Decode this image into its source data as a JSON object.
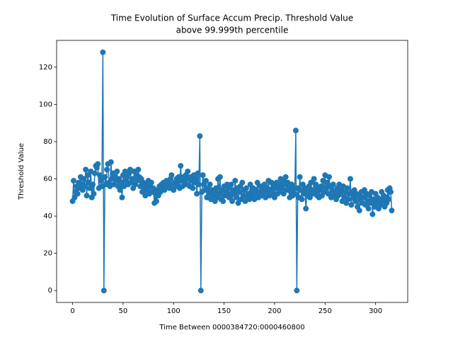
{
  "chart_data": {
    "type": "line",
    "title": [
      "Time Evolution of Surface Accum Precip. Threshold Value",
      "above 99.999th percentile"
    ],
    "xlabel": "Time Between 0000384720:0000460800",
    "ylabel": "Threshold Value",
    "color": "#1f77b4",
    "marker": "o",
    "grid": false,
    "xlim": [
      -15.8,
      331.8
    ],
    "ylim": [
      -6.4,
      134.4
    ],
    "xticks": [
      0,
      50,
      100,
      150,
      200,
      250,
      300
    ],
    "yticks": [
      0,
      20,
      40,
      60,
      80,
      100,
      120
    ],
    "x": [
      0,
      1,
      2,
      3,
      4,
      5,
      6,
      7,
      8,
      9,
      10,
      11,
      12,
      13,
      14,
      15,
      16,
      17,
      18,
      19,
      20,
      21,
      22,
      23,
      24,
      25,
      26,
      27,
      28,
      29,
      30,
      31,
      32,
      33,
      34,
      35,
      36,
      37,
      38,
      39,
      40,
      41,
      42,
      43,
      44,
      45,
      46,
      47,
      48,
      49,
      50,
      51,
      52,
      53,
      54,
      55,
      56,
      57,
      58,
      59,
      60,
      61,
      62,
      63,
      64,
      65,
      66,
      67,
      68,
      69,
      70,
      71,
      72,
      73,
      74,
      75,
      76,
      77,
      78,
      79,
      80,
      81,
      82,
      83,
      84,
      85,
      86,
      87,
      88,
      89,
      90,
      91,
      92,
      93,
      94,
      95,
      96,
      97,
      98,
      99,
      100,
      101,
      102,
      103,
      104,
      105,
      106,
      107,
      108,
      109,
      110,
      111,
      112,
      113,
      114,
      115,
      116,
      117,
      118,
      119,
      120,
      121,
      122,
      123,
      124,
      125,
      126,
      127,
      128,
      129,
      130,
      131,
      132,
      133,
      134,
      135,
      136,
      137,
      138,
      139,
      140,
      141,
      142,
      143,
      144,
      145,
      146,
      147,
      148,
      149,
      150,
      151,
      152,
      153,
      154,
      155,
      156,
      157,
      158,
      159,
      160,
      161,
      162,
      163,
      164,
      165,
      166,
      167,
      168,
      169,
      170,
      171,
      172,
      173,
      174,
      175,
      176,
      177,
      178,
      179,
      180,
      181,
      182,
      183,
      184,
      185,
      186,
      187,
      188,
      189,
      190,
      191,
      192,
      193,
      194,
      195,
      196,
      197,
      198,
      199,
      200,
      201,
      202,
      203,
      204,
      205,
      206,
      207,
      208,
      209,
      210,
      211,
      212,
      213,
      214,
      215,
      216,
      217,
      218,
      219,
      220,
      221,
      222,
      223,
      224,
      225,
      226,
      227,
      228,
      229,
      230,
      231,
      232,
      233,
      234,
      235,
      236,
      237,
      238,
      239,
      240,
      241,
      242,
      243,
      244,
      245,
      246,
      247,
      248,
      249,
      250,
      251,
      252,
      253,
      254,
      255,
      256,
      257,
      258,
      259,
      260,
      261,
      262,
      263,
      264,
      265,
      266,
      267,
      268,
      269,
      270,
      271,
      272,
      273,
      274,
      275,
      276,
      277,
      278,
      279,
      280,
      281,
      282,
      283,
      284,
      285,
      286,
      287,
      288,
      289,
      290,
      291,
      292,
      293,
      294,
      295,
      296,
      297,
      298,
      299,
      300,
      301,
      302,
      303,
      304,
      305,
      306,
      307,
      308,
      309,
      310,
      311,
      312,
      313,
      314,
      315,
      316
    ],
    "values": [
      48,
      59,
      50,
      53,
      56,
      52,
      58,
      55,
      61,
      57,
      54,
      60,
      56,
      65,
      51,
      62,
      58,
      55,
      64,
      50,
      57,
      52,
      63,
      67,
      66,
      68,
      55,
      62,
      59,
      56,
      128,
      0,
      61,
      57,
      65,
      68,
      58,
      56,
      69,
      60,
      63,
      57,
      61,
      59,
      64,
      56,
      60,
      54,
      58,
      50,
      62,
      56,
      64,
      59,
      61,
      57,
      63,
      65,
      58,
      60,
      55,
      64,
      57,
      62,
      59,
      65,
      61,
      56,
      60,
      53,
      58,
      55,
      51,
      57,
      54,
      59,
      52,
      56,
      58,
      53,
      55,
      47,
      52,
      48,
      54,
      51,
      56,
      53,
      57,
      55,
      58,
      54,
      57,
      59,
      56,
      58,
      55,
      60,
      62,
      57,
      54,
      58,
      56,
      60,
      57,
      61,
      55,
      67,
      59,
      56,
      61,
      58,
      62,
      57,
      64,
      60,
      56,
      61,
      59,
      55,
      62,
      58,
      60,
      52,
      63,
      57,
      83,
      0,
      53,
      62,
      57,
      54,
      59,
      50,
      55,
      52,
      57,
      49,
      54,
      51,
      53,
      48,
      55,
      50,
      60,
      52,
      61,
      49,
      54,
      48,
      56,
      51,
      53,
      57,
      55,
      50,
      52,
      57,
      48,
      54,
      52,
      59,
      50,
      55,
      47,
      53,
      56,
      49,
      58,
      51,
      54,
      48,
      55,
      50,
      52,
      49,
      57,
      53,
      51,
      55,
      49,
      54,
      52,
      58,
      50,
      53,
      56,
      51,
      55,
      52,
      57,
      50,
      53,
      55,
      59,
      51,
      54,
      58,
      52,
      56,
      50,
      55,
      58,
      52,
      57,
      53,
      60,
      55,
      59,
      52,
      57,
      61,
      54,
      58,
      55,
      50,
      53,
      57,
      51,
      55,
      52,
      86,
      0,
      55,
      50,
      61,
      54,
      49,
      57,
      52,
      55,
      44,
      53,
      51,
      56,
      50,
      58,
      54,
      52,
      60,
      53,
      57,
      51,
      55,
      50,
      54,
      56,
      51,
      59,
      53,
      62,
      55,
      58,
      52,
      61,
      56,
      50,
      54,
      57,
      51,
      53,
      49,
      55,
      51,
      57,
      52,
      54,
      48,
      56,
      50,
      53,
      47,
      55,
      49,
      52,
      60,
      46,
      53,
      50,
      54,
      48,
      52,
      45,
      51,
      43,
      49,
      53,
      47,
      50,
      54,
      46,
      52,
      48,
      44,
      51,
      47,
      53,
      41,
      49,
      45,
      52,
      47,
      50,
      44,
      49,
      46,
      53,
      48,
      51,
      45,
      50,
      47,
      54,
      49,
      55,
      53,
      43
    ]
  }
}
